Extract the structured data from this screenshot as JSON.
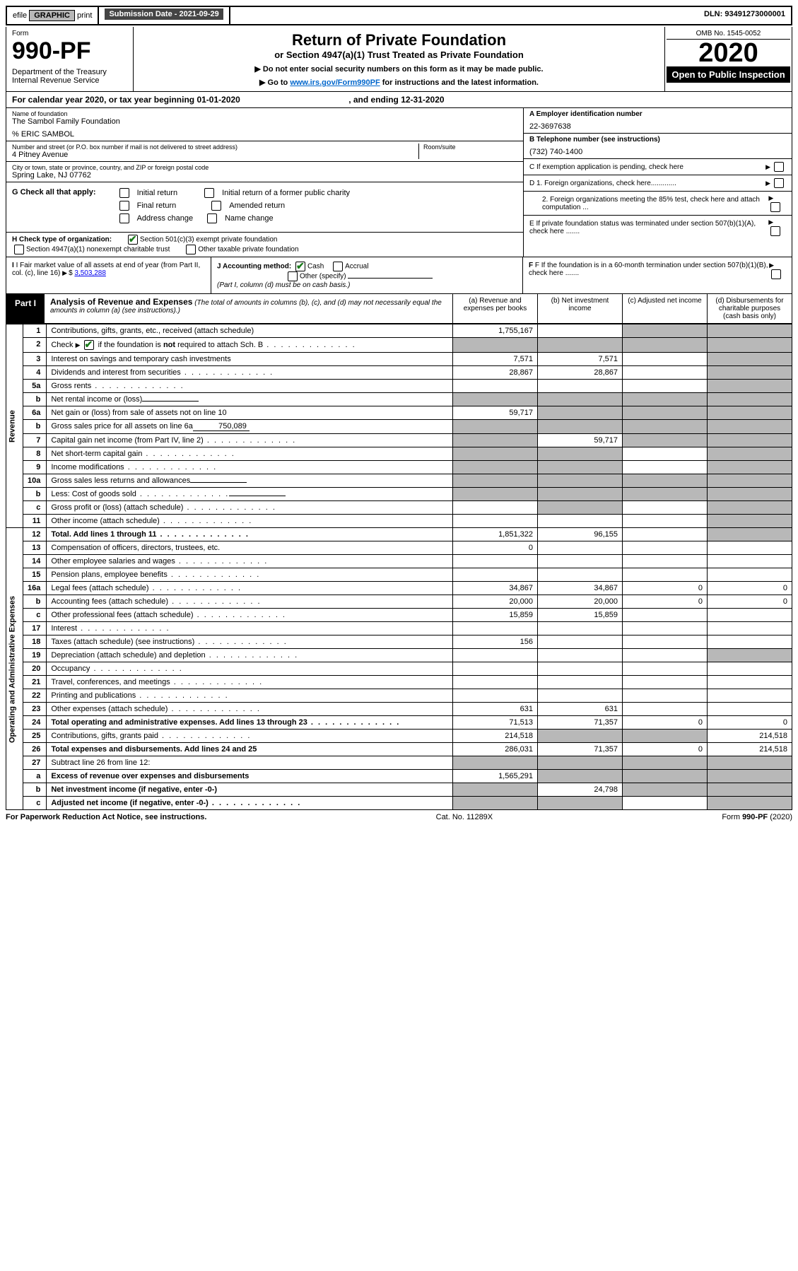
{
  "topbar": {
    "efile": "efile",
    "graphic": "GRAPHIC",
    "print": "print",
    "submission_label": "Submission Date - 2021-09-29",
    "dln": "DLN: 93491273000001"
  },
  "header": {
    "form_word": "Form",
    "form_no": "990-PF",
    "dept": "Department of the Treasury\nInternal Revenue Service",
    "title": "Return of Private Foundation",
    "subtitle": "or Section 4947(a)(1) Trust Treated as Private Foundation",
    "instr1": "▶ Do not enter social security numbers on this form as it may be made public.",
    "instr2_pre": "▶ Go to ",
    "instr2_link": "www.irs.gov/Form990PF",
    "instr2_post": " for instructions and the latest information.",
    "omb": "OMB No. 1545-0052",
    "year": "2020",
    "open": "Open to Public Inspection"
  },
  "calendar": {
    "text_pre": "For calendar year 2020, or tax year beginning ",
    "begin": "01-01-2020",
    "mid": " , and ending ",
    "end": "12-31-2020"
  },
  "foundation": {
    "name_label": "Name of foundation",
    "name": "The Sambol Family Foundation",
    "care_of": "% ERIC SAMBOL",
    "addr_label": "Number and street (or P.O. box number if mail is not delivered to street address)",
    "addr": "4 Pitney Avenue",
    "room_label": "Room/suite",
    "city_label": "City or town, state or province, country, and ZIP or foreign postal code",
    "city": "Spring Lake, NJ  07762"
  },
  "right_info": {
    "a_label": "A Employer identification number",
    "a_value": "22-3697638",
    "b_label": "B Telephone number (see instructions)",
    "b_value": "(732) 740-1400",
    "c_label": "C If exemption application is pending, check here",
    "d1": "D 1. Foreign organizations, check here.............",
    "d2": "2. Foreign organizations meeting the 85% test, check here and attach computation ...",
    "e": "E If private foundation status was terminated under section 507(b)(1)(A), check here .......",
    "f": "F If the foundation is in a 60-month termination under section 507(b)(1)(B), check here ......."
  },
  "check_g": {
    "label": "G Check all that apply:",
    "initial": "Initial return",
    "initial_former": "Initial return of a former public charity",
    "final": "Final return",
    "amended": "Amended return",
    "addr_change": "Address change",
    "name_change": "Name change"
  },
  "check_h": {
    "label": "H Check type of organization:",
    "opt1": "Section 501(c)(3) exempt private foundation",
    "opt2": "Section 4947(a)(1) nonexempt charitable trust",
    "opt3": "Other taxable private foundation"
  },
  "lower": {
    "i_label": "I Fair market value of all assets at end of year (from Part II, col. (c), line 16)",
    "i_value": "3,503,288",
    "j_label": "J Accounting method:",
    "j_cash": "Cash",
    "j_accrual": "Accrual",
    "j_other": "Other (specify)",
    "j_note": "(Part I, column (d) must be on cash basis.)"
  },
  "part1": {
    "label": "Part I",
    "title": "Analysis of Revenue and Expenses",
    "note": "(The total of amounts in columns (b), (c), and (d) may not necessarily equal the amounts in column (a) (see instructions).)",
    "col_a": "(a) Revenue and expenses per books",
    "col_b": "(b) Net investment income",
    "col_c": "(c) Adjusted net income",
    "col_d": "(d) Disbursements for charitable purposes (cash basis only)"
  },
  "vlabels": {
    "revenue": "Revenue",
    "expenses": "Operating and Administrative Expenses"
  },
  "rows": [
    {
      "no": "1",
      "desc": "Contributions, gifts, grants, etc., received (attach schedule)",
      "a": "1,755,167",
      "b": "",
      "c": "shaded",
      "d": "shaded"
    },
    {
      "no": "2",
      "desc": "Check ▶ ☑ if the foundation is not required to attach Sch. B",
      "dots": true,
      "a": "shaded",
      "b": "shaded",
      "c": "shaded",
      "d": "shaded",
      "checked": true
    },
    {
      "no": "3",
      "desc": "Interest on savings and temporary cash investments",
      "a": "7,571",
      "b": "7,571",
      "c": "",
      "d": "shaded"
    },
    {
      "no": "4",
      "desc": "Dividends and interest from securities",
      "dots": true,
      "a": "28,867",
      "b": "28,867",
      "c": "",
      "d": "shaded"
    },
    {
      "no": "5a",
      "desc": "Gross rents",
      "dots": true,
      "a": "",
      "b": "",
      "c": "",
      "d": "shaded"
    },
    {
      "no": "b",
      "desc": "Net rental income or (loss)",
      "inline": "",
      "a": "shaded",
      "b": "shaded",
      "c": "shaded",
      "d": "shaded"
    },
    {
      "no": "6a",
      "desc": "Net gain or (loss) from sale of assets not on line 10",
      "a": "59,717",
      "b": "shaded",
      "c": "shaded",
      "d": "shaded"
    },
    {
      "no": "b",
      "desc": "Gross sales price for all assets on line 6a",
      "inline": "750,089",
      "a": "shaded",
      "b": "shaded",
      "c": "shaded",
      "d": "shaded"
    },
    {
      "no": "7",
      "desc": "Capital gain net income (from Part IV, line 2)",
      "dots": true,
      "a": "shaded",
      "b": "59,717",
      "c": "shaded",
      "d": "shaded"
    },
    {
      "no": "8",
      "desc": "Net short-term capital gain",
      "dots": true,
      "a": "shaded",
      "b": "shaded",
      "c": "",
      "d": "shaded"
    },
    {
      "no": "9",
      "desc": "Income modifications",
      "dots": true,
      "a": "shaded",
      "b": "shaded",
      "c": "",
      "d": "shaded"
    },
    {
      "no": "10a",
      "desc": "Gross sales less returns and allowances",
      "inline": "",
      "a": "shaded",
      "b": "shaded",
      "c": "shaded",
      "d": "shaded"
    },
    {
      "no": "b",
      "desc": "Less: Cost of goods sold",
      "dots": true,
      "inline": "",
      "a": "shaded",
      "b": "shaded",
      "c": "shaded",
      "d": "shaded"
    },
    {
      "no": "c",
      "desc": "Gross profit or (loss) (attach schedule)",
      "dots": true,
      "a": "",
      "b": "shaded",
      "c": "",
      "d": "shaded"
    },
    {
      "no": "11",
      "desc": "Other income (attach schedule)",
      "dots": true,
      "a": "",
      "b": "",
      "c": "",
      "d": "shaded"
    },
    {
      "no": "12",
      "desc": "Total. Add lines 1 through 11",
      "dots": true,
      "bold": true,
      "a": "1,851,322",
      "b": "96,155",
      "c": "",
      "d": "shaded"
    },
    {
      "no": "13",
      "desc": "Compensation of officers, directors, trustees, etc.",
      "a": "0",
      "b": "",
      "c": "",
      "d": ""
    },
    {
      "no": "14",
      "desc": "Other employee salaries and wages",
      "dots": true,
      "a": "",
      "b": "",
      "c": "",
      "d": ""
    },
    {
      "no": "15",
      "desc": "Pension plans, employee benefits",
      "dots": true,
      "a": "",
      "b": "",
      "c": "",
      "d": ""
    },
    {
      "no": "16a",
      "desc": "Legal fees (attach schedule)",
      "dots": true,
      "a": "34,867",
      "b": "34,867",
      "c": "0",
      "d": "0"
    },
    {
      "no": "b",
      "desc": "Accounting fees (attach schedule)",
      "dots": true,
      "a": "20,000",
      "b": "20,000",
      "c": "0",
      "d": "0"
    },
    {
      "no": "c",
      "desc": "Other professional fees (attach schedule)",
      "dots": true,
      "a": "15,859",
      "b": "15,859",
      "c": "",
      "d": ""
    },
    {
      "no": "17",
      "desc": "Interest",
      "dots": true,
      "a": "",
      "b": "",
      "c": "",
      "d": ""
    },
    {
      "no": "18",
      "desc": "Taxes (attach schedule) (see instructions)",
      "dots": true,
      "a": "156",
      "b": "",
      "c": "",
      "d": ""
    },
    {
      "no": "19",
      "desc": "Depreciation (attach schedule) and depletion",
      "dots": true,
      "a": "",
      "b": "",
      "c": "",
      "d": "shaded"
    },
    {
      "no": "20",
      "desc": "Occupancy",
      "dots": true,
      "a": "",
      "b": "",
      "c": "",
      "d": ""
    },
    {
      "no": "21",
      "desc": "Travel, conferences, and meetings",
      "dots": true,
      "a": "",
      "b": "",
      "c": "",
      "d": ""
    },
    {
      "no": "22",
      "desc": "Printing and publications",
      "dots": true,
      "a": "",
      "b": "",
      "c": "",
      "d": ""
    },
    {
      "no": "23",
      "desc": "Other expenses (attach schedule)",
      "dots": true,
      "a": "631",
      "b": "631",
      "c": "",
      "d": ""
    },
    {
      "no": "24",
      "desc": "Total operating and administrative expenses. Add lines 13 through 23",
      "dots": true,
      "bold": true,
      "a": "71,513",
      "b": "71,357",
      "c": "0",
      "d": "0"
    },
    {
      "no": "25",
      "desc": "Contributions, gifts, grants paid",
      "dots": true,
      "a": "214,518",
      "b": "shaded",
      "c": "shaded",
      "d": "214,518"
    },
    {
      "no": "26",
      "desc": "Total expenses and disbursements. Add lines 24 and 25",
      "bold": true,
      "a": "286,031",
      "b": "71,357",
      "c": "0",
      "d": "214,518"
    },
    {
      "no": "27",
      "desc": "Subtract line 26 from line 12:",
      "a": "shaded",
      "b": "shaded",
      "c": "shaded",
      "d": "shaded"
    },
    {
      "no": "a",
      "desc": "Excess of revenue over expenses and disbursements",
      "bold": true,
      "a": "1,565,291",
      "b": "shaded",
      "c": "shaded",
      "d": "shaded"
    },
    {
      "no": "b",
      "desc": "Net investment income (if negative, enter -0-)",
      "bold": true,
      "a": "shaded",
      "b": "24,798",
      "c": "shaded",
      "d": "shaded"
    },
    {
      "no": "c",
      "desc": "Adjusted net income (if negative, enter -0-)",
      "dots": true,
      "bold": true,
      "a": "shaded",
      "b": "shaded",
      "c": "",
      "d": "shaded"
    }
  ],
  "footer": {
    "left": "For Paperwork Reduction Act Notice, see instructions.",
    "mid": "Cat. No. 11289X",
    "right": "Form 990-PF (2020)"
  }
}
